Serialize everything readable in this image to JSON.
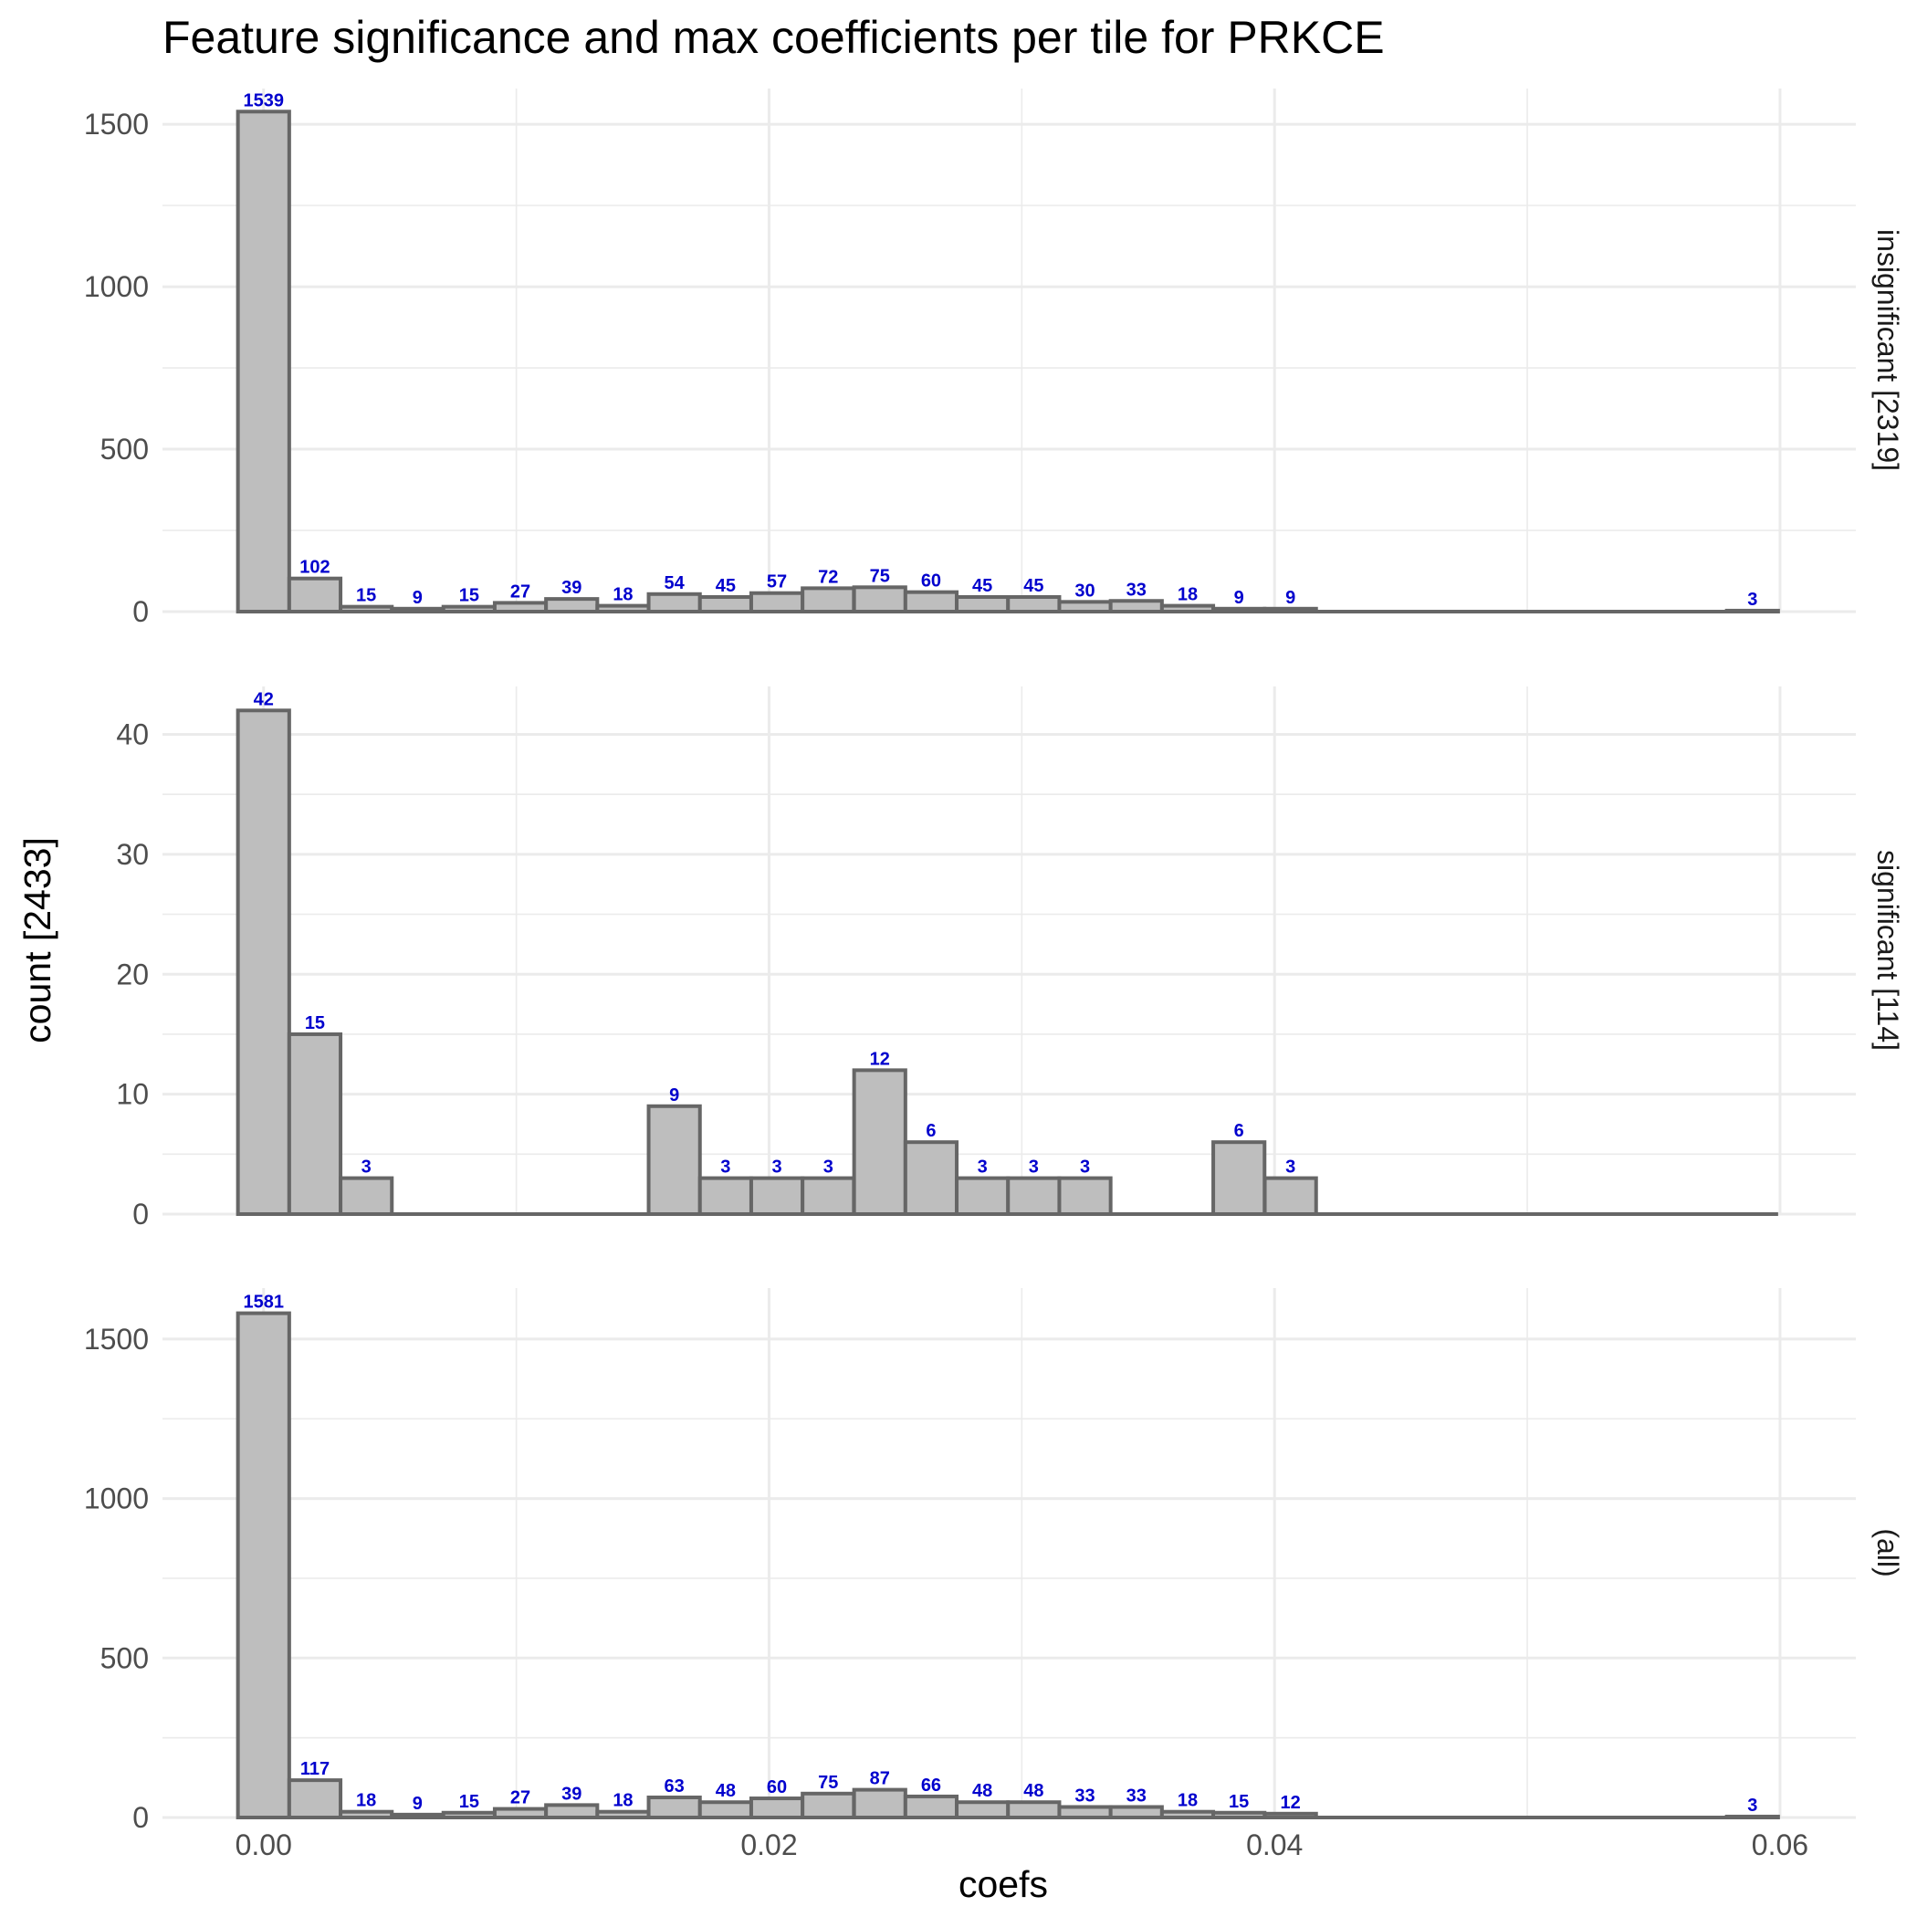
{
  "chart_data": {
    "type": "bar",
    "title": "Feature significance and max coefficients per tile for PRKCE",
    "xlabel": "coefs",
    "ylabel": "count [2433]",
    "xlim": [
      -0.004,
      0.063
    ],
    "x_ticks": [
      "0.00",
      "0.02",
      "0.04",
      "0.06"
    ],
    "x_tick_values": [
      0.0,
      0.02,
      0.04,
      0.06
    ],
    "bin_width": 0.00203,
    "bin_centers": [
      0.0,
      0.00203,
      0.00406,
      0.00609,
      0.00813,
      0.01016,
      0.01219,
      0.01422,
      0.01625,
      0.01828,
      0.02031,
      0.02234,
      0.02438,
      0.02641,
      0.02844,
      0.03047,
      0.0325,
      0.03453,
      0.03656,
      0.03859,
      0.04063,
      0.04266,
      0.04469,
      0.04672,
      0.04875,
      0.05078,
      0.05281,
      0.05484,
      0.05688,
      0.05891
    ],
    "facets": [
      {
        "strip": "insignificant [2319]",
        "ylim": [
          0,
          1610
        ],
        "y_ticks": [
          0,
          500,
          1000,
          1500
        ],
        "y_tick_labels": [
          "0",
          "500",
          "1000",
          "1500"
        ],
        "values": [
          1539,
          102,
          15,
          9,
          15,
          27,
          39,
          18,
          54,
          45,
          57,
          72,
          75,
          60,
          45,
          45,
          30,
          33,
          18,
          9,
          9,
          0,
          0,
          0,
          0,
          0,
          0,
          0,
          0,
          3
        ]
      },
      {
        "strip": "significant [114]",
        "ylim": [
          0,
          44
        ],
        "y_ticks": [
          0,
          10,
          20,
          30,
          40
        ],
        "y_tick_labels": [
          "0",
          "10",
          "20",
          "30",
          "40"
        ],
        "values": [
          42,
          15,
          3,
          0,
          0,
          0,
          0,
          0,
          9,
          3,
          3,
          3,
          12,
          6,
          3,
          3,
          3,
          0,
          0,
          6,
          3,
          0,
          0,
          0,
          0,
          0,
          0,
          0,
          0,
          0
        ]
      },
      {
        "strip": "(all)",
        "ylim": [
          0,
          1660
        ],
        "y_ticks": [
          0,
          500,
          1000,
          1500
        ],
        "y_tick_labels": [
          "0",
          "500",
          "1000",
          "1500"
        ],
        "values": [
          1581,
          117,
          18,
          9,
          15,
          27,
          39,
          18,
          63,
          48,
          60,
          75,
          87,
          66,
          48,
          48,
          33,
          33,
          18,
          15,
          12,
          0,
          0,
          0,
          0,
          0,
          0,
          0,
          0,
          3
        ]
      }
    ],
    "colors": {
      "bar_fill": "#bebebe",
      "bar_outline": "#666666",
      "data_label": "#0000cd",
      "gridline": "#ebebeb"
    },
    "grid": true,
    "legend": "none"
  }
}
